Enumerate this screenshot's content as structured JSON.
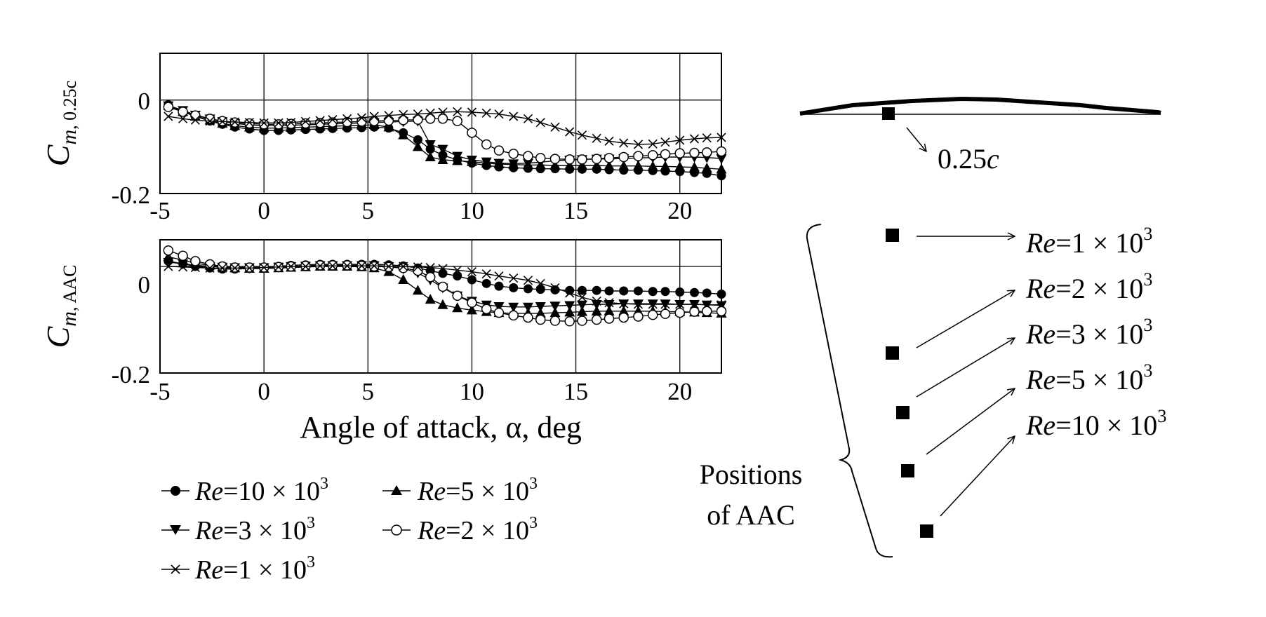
{
  "chart_data": [
    {
      "type": "line",
      "ylabel": {
        "main": "C",
        "sub1": "m",
        "sub2": ", 0.25c"
      },
      "xlim": [
        -5,
        22
      ],
      "ylim": [
        -0.2,
        0.1
      ],
      "xticks": [
        "-5",
        "0",
        "5",
        "10",
        "15",
        "20"
      ],
      "yticks": [
        "0",
        "-0.2"
      ],
      "grid": true,
      "series": [
        {
          "name": "Re=10×10³",
          "marker": "filled-circle",
          "x": [
            -4.6,
            -3.9,
            -3.3,
            -2.6,
            -2.0,
            -1.4,
            -0.7,
            0,
            0.7,
            1.3,
            2.0,
            2.7,
            3.3,
            4.0,
            4.7,
            5.3,
            6.0,
            6.7,
            7.4,
            8.0,
            8.6,
            9.3,
            10.0,
            10.7,
            11.3,
            12.0,
            12.7,
            13.3,
            14.0,
            14.7,
            15.3,
            16.0,
            16.6,
            17.3,
            18.0,
            18.7,
            19.3,
            20.0,
            20.7,
            21.3,
            22.0
          ],
          "y": [
            -0.01,
            -0.025,
            -0.035,
            -0.045,
            -0.052,
            -0.058,
            -0.062,
            -0.065,
            -0.065,
            -0.064,
            -0.063,
            -0.062,
            -0.061,
            -0.06,
            -0.059,
            -0.058,
            -0.06,
            -0.07,
            -0.085,
            -0.105,
            -0.118,
            -0.128,
            -0.135,
            -0.14,
            -0.143,
            -0.145,
            -0.146,
            -0.147,
            -0.147,
            -0.148,
            -0.148,
            -0.148,
            -0.149,
            -0.15,
            -0.15,
            -0.151,
            -0.152,
            -0.153,
            -0.155,
            -0.157,
            -0.162
          ]
        },
        {
          "name": "Re=5×10³",
          "marker": "filled-triangle-up",
          "x": [
            -4.6,
            -3.9,
            -3.3,
            -2.6,
            -2.0,
            -1.4,
            -0.7,
            0,
            0.7,
            1.3,
            2.0,
            2.7,
            3.3,
            4.0,
            4.7,
            5.3,
            6.0,
            6.7,
            7.4,
            8.0,
            8.6,
            9.3,
            10.0,
            10.7,
            11.3,
            12.0,
            12.7,
            13.3,
            14.0,
            14.7,
            15.3,
            16.0,
            16.6,
            17.3,
            18.0,
            18.7,
            19.3,
            20.0,
            20.7,
            21.3,
            22.0
          ],
          "y": [
            -0.012,
            -0.025,
            -0.035,
            -0.043,
            -0.05,
            -0.055,
            -0.058,
            -0.06,
            -0.06,
            -0.059,
            -0.058,
            -0.057,
            -0.056,
            -0.055,
            -0.054,
            -0.053,
            -0.058,
            -0.075,
            -0.1,
            -0.122,
            -0.128,
            -0.13,
            -0.132,
            -0.135,
            -0.137,
            -0.138,
            -0.139,
            -0.139,
            -0.14,
            -0.14,
            -0.14,
            -0.14,
            -0.141,
            -0.141,
            -0.141,
            -0.142,
            -0.142,
            -0.143,
            -0.144,
            -0.146,
            -0.148
          ]
        },
        {
          "name": "Re=3×10³",
          "marker": "filled-triangle-down",
          "x": [
            -4.6,
            -3.9,
            -3.3,
            -2.6,
            -2.0,
            -1.4,
            -0.7,
            0,
            0.7,
            1.3,
            2.0,
            2.7,
            3.3,
            4.0,
            4.7,
            5.3,
            6.0,
            6.7,
            7.4,
            8.0,
            8.6,
            9.3,
            10.0,
            10.7,
            11.3,
            12.0,
            12.7,
            13.3,
            14.0,
            14.7,
            15.3,
            16.0,
            16.6,
            17.3,
            18.0,
            18.7,
            19.3,
            20.0,
            20.7,
            21.3,
            22.0
          ],
          "y": [
            -0.012,
            -0.022,
            -0.032,
            -0.04,
            -0.046,
            -0.05,
            -0.053,
            -0.055,
            -0.055,
            -0.054,
            -0.053,
            -0.052,
            -0.051,
            -0.05,
            -0.049,
            -0.048,
            -0.047,
            -0.046,
            -0.045,
            -0.095,
            -0.105,
            -0.12,
            -0.128,
            -0.132,
            -0.135,
            -0.136,
            -0.135,
            -0.133,
            -0.13,
            -0.128,
            -0.127,
            -0.126,
            -0.126,
            -0.125,
            -0.124,
            -0.123,
            -0.122,
            -0.122,
            -0.122,
            -0.123,
            -0.125
          ]
        },
        {
          "name": "Re=2×10³",
          "marker": "open-circle",
          "x": [
            -4.6,
            -3.9,
            -3.3,
            -2.6,
            -2.0,
            -1.4,
            -0.7,
            0,
            0.7,
            1.3,
            2.0,
            2.7,
            3.3,
            4.0,
            4.7,
            5.3,
            6.0,
            6.7,
            7.4,
            8.0,
            8.6,
            9.3,
            10.0,
            10.7,
            11.3,
            12.0,
            12.7,
            13.3,
            14.0,
            14.7,
            15.3,
            16.0,
            16.6,
            17.3,
            18.0,
            18.7,
            19.3,
            20.0,
            20.7,
            21.3,
            22.0
          ],
          "y": [
            -0.015,
            -0.025,
            -0.033,
            -0.04,
            -0.045,
            -0.048,
            -0.05,
            -0.052,
            -0.052,
            -0.051,
            -0.05,
            -0.049,
            -0.048,
            -0.047,
            -0.046,
            -0.045,
            -0.044,
            -0.043,
            -0.042,
            -0.04,
            -0.04,
            -0.045,
            -0.07,
            -0.095,
            -0.108,
            -0.115,
            -0.12,
            -0.124,
            -0.126,
            -0.127,
            -0.127,
            -0.126,
            -0.124,
            -0.122,
            -0.12,
            -0.118,
            -0.116,
            -0.114,
            -0.113,
            -0.112,
            -0.11
          ]
        },
        {
          "name": "Re=1×10³",
          "marker": "x",
          "x": [
            -4.6,
            -3.9,
            -3.3,
            -2.6,
            -2.0,
            -1.4,
            -0.7,
            0,
            0.7,
            1.3,
            2.0,
            2.7,
            3.3,
            4.0,
            4.7,
            5.3,
            6.0,
            6.7,
            7.4,
            8.0,
            8.6,
            9.3,
            10.0,
            10.7,
            11.3,
            12.0,
            12.7,
            13.3,
            14.0,
            14.7,
            15.3,
            16.0,
            16.6,
            17.3,
            18.0,
            18.7,
            19.3,
            20.0,
            20.7,
            21.3,
            22.0
          ],
          "y": [
            -0.035,
            -0.04,
            -0.043,
            -0.045,
            -0.046,
            -0.047,
            -0.048,
            -0.049,
            -0.049,
            -0.048,
            -0.046,
            -0.044,
            -0.042,
            -0.04,
            -0.038,
            -0.035,
            -0.033,
            -0.031,
            -0.03,
            -0.028,
            -0.026,
            -0.025,
            -0.026,
            -0.028,
            -0.03,
            -0.035,
            -0.04,
            -0.048,
            -0.058,
            -0.068,
            -0.075,
            -0.082,
            -0.088,
            -0.092,
            -0.095,
            -0.094,
            -0.09,
            -0.086,
            -0.083,
            -0.081,
            -0.08
          ]
        }
      ]
    },
    {
      "type": "line",
      "ylabel": {
        "main": "C",
        "sub1": "m",
        "sub2": ", AAC"
      },
      "xlim": [
        -5,
        22
      ],
      "ylim": [
        -0.2,
        0.05
      ],
      "xticks": [
        "-5",
        "0",
        "5",
        "10",
        "15",
        "20"
      ],
      "yticks": [
        "0",
        "-0.2"
      ],
      "xlabel": "Angle of attack, α, deg",
      "grid": true,
      "series": [
        {
          "name": "Re=10×10³",
          "marker": "filled-circle",
          "x": [
            -4.6,
            -3.9,
            -3.3,
            -2.6,
            -2.0,
            -1.4,
            -0.7,
            0,
            0.7,
            1.3,
            2.0,
            2.7,
            3.3,
            4.0,
            4.7,
            5.3,
            6.0,
            6.7,
            7.4,
            8.0,
            8.6,
            9.3,
            10.0,
            10.7,
            11.3,
            12.0,
            12.7,
            13.3,
            14.0,
            14.7,
            15.3,
            16.0,
            16.6,
            17.3,
            18.0,
            18.7,
            19.3,
            20.0,
            20.7,
            21.3,
            22.0
          ],
          "y": [
            0.01,
            0.005,
            0.0,
            -0.003,
            -0.005,
            -0.005,
            -0.004,
            -0.002,
            0.0,
            0.002,
            0.003,
            0.004,
            0.004,
            0.004,
            0.004,
            0.004,
            0.003,
            0.001,
            -0.003,
            -0.008,
            -0.013,
            -0.018,
            -0.025,
            -0.032,
            -0.037,
            -0.04,
            -0.042,
            -0.043,
            -0.044,
            -0.045,
            -0.045,
            -0.045,
            -0.046,
            -0.046,
            -0.046,
            -0.047,
            -0.047,
            -0.048,
            -0.049,
            -0.05,
            -0.052
          ]
        },
        {
          "name": "Re=5×10³",
          "marker": "filled-triangle-up",
          "x": [
            -4.6,
            -3.9,
            -3.3,
            -2.6,
            -2.0,
            -1.4,
            -0.7,
            0,
            0.7,
            1.3,
            2.0,
            2.7,
            3.3,
            4.0,
            4.7,
            5.3,
            6.0,
            6.7,
            7.4,
            8.0,
            8.6,
            9.3,
            10.0,
            10.7,
            11.3,
            12.0,
            12.7,
            13.3,
            14.0,
            14.7,
            15.3,
            16.0,
            16.6,
            17.3,
            18.0,
            18.7,
            19.3,
            20.0,
            20.7,
            21.3,
            22.0
          ],
          "y": [
            0.018,
            0.012,
            0.006,
            0.002,
            -0.001,
            -0.003,
            -0.004,
            -0.004,
            -0.003,
            -0.002,
            -0.001,
            0.0,
            0.0,
            0.0,
            -0.001,
            -0.003,
            -0.01,
            -0.025,
            -0.045,
            -0.062,
            -0.072,
            -0.078,
            -0.082,
            -0.085,
            -0.087,
            -0.088,
            -0.088,
            -0.088,
            -0.087,
            -0.086,
            -0.085,
            -0.084,
            -0.084,
            -0.084,
            -0.084,
            -0.084,
            -0.085,
            -0.085,
            -0.086,
            -0.087,
            -0.088
          ]
        },
        {
          "name": "Re=3×10³",
          "marker": "filled-triangle-down",
          "x": [
            -4.6,
            -3.9,
            -3.3,
            -2.6,
            -2.0,
            -1.4,
            -0.7,
            0,
            0.7,
            1.3,
            2.0,
            2.7,
            3.3,
            4.0,
            4.7,
            5.3,
            6.0,
            6.7,
            7.4,
            8.0,
            8.6,
            9.3,
            10.0,
            10.7,
            11.3,
            12.0,
            12.7,
            13.3,
            14.0,
            14.7,
            15.3,
            16.0,
            16.6,
            17.3,
            18.0,
            18.7,
            19.3,
            20.0,
            20.7,
            21.3,
            22.0
          ],
          "y": [
            0.008,
            0.005,
            0.002,
            0.0,
            -0.001,
            -0.002,
            -0.002,
            -0.002,
            -0.001,
            0.0,
            0.001,
            0.002,
            0.002,
            0.002,
            0.002,
            0.002,
            0.0,
            -0.004,
            -0.012,
            -0.025,
            -0.04,
            -0.055,
            -0.065,
            -0.072,
            -0.075,
            -0.076,
            -0.076,
            -0.075,
            -0.074,
            -0.073,
            -0.072,
            -0.071,
            -0.071,
            -0.07,
            -0.07,
            -0.07,
            -0.07,
            -0.071,
            -0.071,
            -0.072,
            -0.073
          ]
        },
        {
          "name": "Re=2×10³",
          "marker": "open-circle",
          "x": [
            -4.6,
            -3.9,
            -3.3,
            -2.6,
            -2.0,
            -1.4,
            -0.7,
            0,
            0.7,
            1.3,
            2.0,
            2.7,
            3.3,
            4.0,
            4.7,
            5.3,
            6.0,
            6.7,
            7.4,
            8.0,
            8.6,
            9.3,
            10.0,
            10.7,
            11.3,
            12.0,
            12.7,
            13.3,
            14.0,
            14.7,
            15.3,
            16.0,
            16.6,
            17.3,
            18.0,
            18.7,
            19.3,
            20.0,
            20.7,
            21.3,
            22.0
          ],
          "y": [
            0.03,
            0.02,
            0.01,
            0.004,
            0.0,
            -0.002,
            -0.002,
            -0.002,
            -0.001,
            0.0,
            0.001,
            0.002,
            0.002,
            0.002,
            0.001,
            0.0,
            -0.001,
            -0.003,
            -0.008,
            -0.02,
            -0.038,
            -0.055,
            -0.068,
            -0.08,
            -0.087,
            -0.092,
            -0.096,
            -0.1,
            -0.102,
            -0.103,
            -0.102,
            -0.1,
            -0.098,
            -0.096,
            -0.094,
            -0.091,
            -0.089,
            -0.087,
            -0.085,
            -0.084,
            -0.084
          ]
        },
        {
          "name": "Re=1×10³",
          "marker": "x",
          "x": [
            -4.6,
            -3.9,
            -3.3,
            -2.6,
            -2.0,
            -1.4,
            -0.7,
            0,
            0.7,
            1.3,
            2.0,
            2.7,
            3.3,
            4.0,
            4.7,
            5.3,
            6.0,
            6.7,
            7.4,
            8.0,
            8.6,
            9.3,
            10.0,
            10.7,
            11.3,
            12.0,
            12.7,
            13.3,
            14.0,
            14.7,
            15.3,
            16.0,
            16.6,
            17.3,
            18.0,
            18.7,
            19.3,
            20.0,
            20.7,
            21.3,
            22.0
          ],
          "y": [
            0.0,
            -0.001,
            -0.002,
            -0.003,
            -0.003,
            -0.003,
            -0.003,
            -0.002,
            -0.001,
            0.0,
            0.0,
            0.001,
            0.001,
            0.001,
            0.001,
            0.001,
            0.0,
            0.0,
            -0.001,
            -0.002,
            -0.004,
            -0.007,
            -0.01,
            -0.014,
            -0.018,
            -0.022,
            -0.026,
            -0.032,
            -0.04,
            -0.05,
            -0.058,
            -0.065,
            -0.068,
            -0.07,
            -0.071,
            -0.071,
            -0.071,
            -0.071,
            -0.071,
            -0.072,
            -0.072
          ]
        }
      ]
    }
  ],
  "legend": {
    "placement": "below-plots",
    "items": [
      {
        "re": "Re",
        "val": "=10 × 10",
        "exp": "3",
        "marker": "filled-circle"
      },
      {
        "re": "Re",
        "val": "=5 × 10",
        "exp": "3",
        "marker": "filled-triangle-up"
      },
      {
        "re": "Re",
        "val": "=3 × 10",
        "exp": "3",
        "marker": "filled-triangle-down"
      },
      {
        "re": "Re",
        "val": "=2 × 10",
        "exp": "3",
        "marker": "open-circle"
      },
      {
        "re": "Re",
        "val": "=1 × 10",
        "exp": "3",
        "marker": "x"
      }
    ]
  },
  "airfoil": {
    "label_num": "0.25",
    "label_c": "c"
  },
  "aac": {
    "bracket_label_line1": "Positions",
    "bracket_label_line2": "of AAC",
    "labels": [
      {
        "re": "Re",
        "val": "=1 × 10",
        "exp": "3"
      },
      {
        "re": "Re",
        "val": "=2 × 10",
        "exp": "3"
      },
      {
        "re": "Re",
        "val": "=3 × 10",
        "exp": "3"
      },
      {
        "re": "Re",
        "val": "=5 × 10",
        "exp": "3"
      },
      {
        "re": "Re",
        "val": "=10 × 10",
        "exp": "3"
      }
    ]
  }
}
